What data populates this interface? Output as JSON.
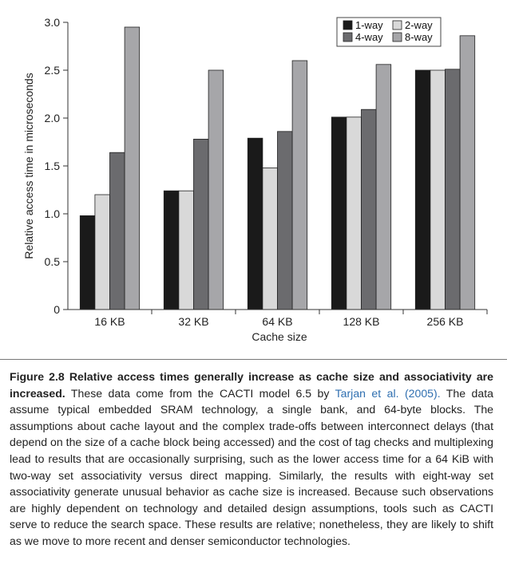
{
  "chart_data": {
    "type": "bar",
    "categories": [
      "16 KB",
      "32 KB",
      "64 KB",
      "128 KB",
      "256 KB"
    ],
    "series": [
      {
        "name": "1-way",
        "color": "#1a1a1a",
        "values": [
          0.98,
          1.24,
          1.79,
          2.01,
          2.5
        ]
      },
      {
        "name": "2-way",
        "color": "#d9d9d9",
        "values": [
          1.2,
          1.24,
          1.48,
          2.01,
          2.5
        ]
      },
      {
        "name": "4-way",
        "color": "#6b6b6e",
        "values": [
          1.64,
          1.78,
          1.86,
          2.09,
          2.51
        ]
      },
      {
        "name": "8-way",
        "color": "#a6a6a9",
        "values": [
          2.95,
          2.5,
          2.6,
          2.56,
          2.86
        ]
      }
    ],
    "xlabel": "Cache size",
    "ylabel": "Relative access time in microseconds",
    "ylim": [
      0,
      3.0
    ],
    "yticks": [
      "0",
      "0.5",
      "1.0",
      "1.5",
      "2.0",
      "2.5",
      "3.0"
    ],
    "grid": false,
    "legend_position": "top-right"
  },
  "caption": {
    "label": "Figure 2.8",
    "title": "Relative access times generally increase as cache size and associativity are increased.",
    "text_before_link": "These data come from the CACTI model 6.5 by",
    "link_text": "Tarjan et al. (2005).",
    "text_after_link": "The data assume typical embedded SRAM technology, a single bank, and 64-byte blocks. The assumptions about cache layout and the complex trade-offs between interconnect delays (that depend on the size of a cache block being accessed) and the cost of tag checks and multiplexing lead to results that are occasionally surprising, such as the lower access time for a 64 KiB with two-way set associativity versus direct mapping. Similarly, the results with eight-way set associativity generate unusual behavior as cache size is increased. Because such observations are highly dependent on technology and detailed design assumptions, tools such as CACTI serve to reduce the search space. These results are relative; nonetheless, they are likely to shift as we move to more recent and denser semiconductor technologies."
  }
}
